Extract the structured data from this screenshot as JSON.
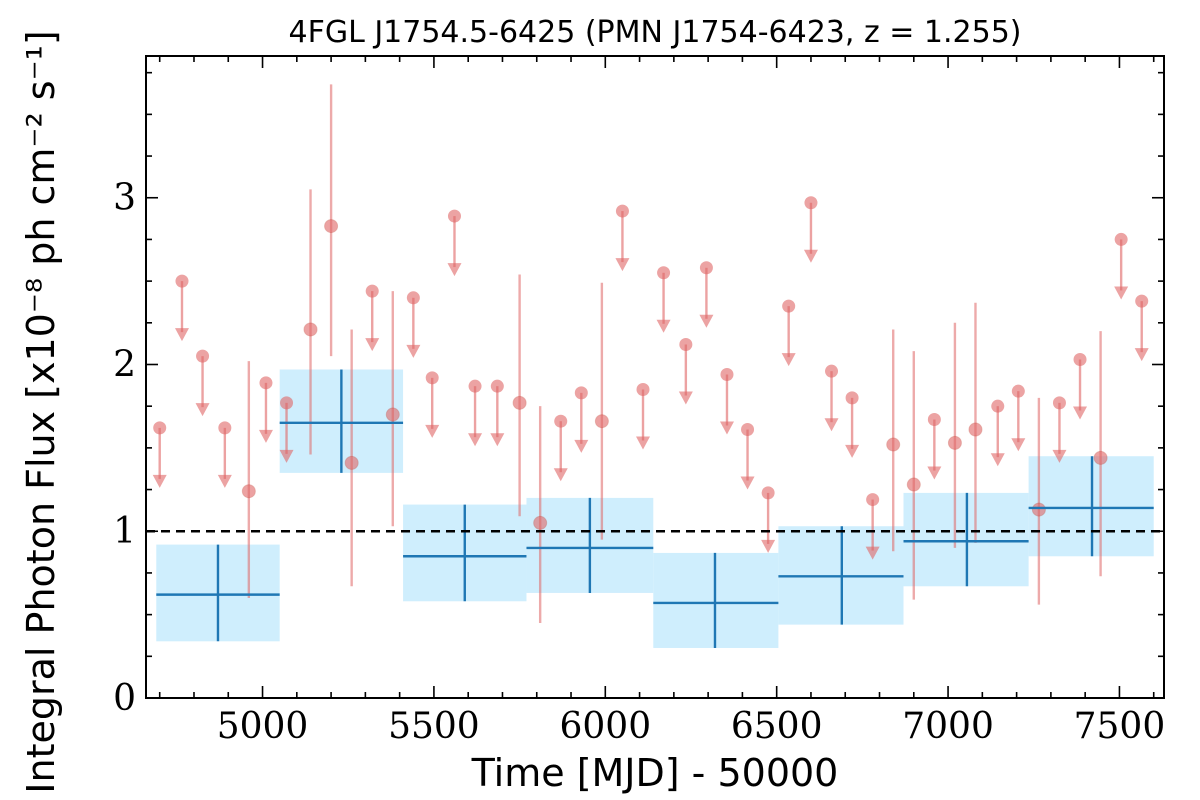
{
  "chart_data": {
    "type": "scatter",
    "title": "4FGL J1754.5-6425 (PMN J1754-6423, z = 1.255)",
    "xlabel": "Time [MJD] - 50000",
    "ylabel": "Integral Photon Flux [x10⁻⁸ ph cm⁻² s⁻¹]",
    "xlim": [
      4660,
      7630
    ],
    "ylim": [
      0,
      3.85
    ],
    "xticks": [
      5000,
      5500,
      6000,
      6500,
      7000,
      7500
    ],
    "xtick_labels": [
      "5000",
      "5500",
      "6000",
      "6500",
      "7000",
      "7500"
    ],
    "yticks": [
      0,
      1,
      2,
      3
    ],
    "ytick_labels": [
      "0",
      "1",
      "2",
      "3"
    ],
    "reference_line": {
      "y": 1.0,
      "style": "dashed",
      "color": "#000000"
    },
    "colors": {
      "short_bins": "#e06666",
      "long_bins_line": "#1f77b4",
      "long_bins_box": "#cfeefd"
    },
    "series": [
      {
        "kind": "short_bin_detections",
        "points": [
          {
            "x": 4960,
            "y": 1.24,
            "lo": 0.6,
            "hi": 2.02
          },
          {
            "x": 5140,
            "y": 2.21,
            "lo": 1.46,
            "hi": 3.05
          },
          {
            "x": 5200,
            "y": 2.83,
            "lo": 2.05,
            "hi": 3.68
          },
          {
            "x": 5260,
            "y": 1.41,
            "lo": 0.67,
            "hi": 2.21
          },
          {
            "x": 5380,
            "y": 1.7,
            "lo": 1.03,
            "hi": 2.44
          },
          {
            "x": 5750,
            "y": 1.77,
            "lo": 1.09,
            "hi": 2.54
          },
          {
            "x": 5810,
            "y": 1.05,
            "lo": 0.45,
            "hi": 1.75
          },
          {
            "x": 5990,
            "y": 1.66,
            "lo": 0.95,
            "hi": 2.49
          },
          {
            "x": 6840,
            "y": 1.52,
            "lo": 0.88,
            "hi": 2.21
          },
          {
            "x": 6900,
            "y": 1.28,
            "lo": 0.59,
            "hi": 2.08
          },
          {
            "x": 7020,
            "y": 1.53,
            "lo": 0.9,
            "hi": 2.25
          },
          {
            "x": 7080,
            "y": 1.61,
            "lo": 0.93,
            "hi": 2.37
          },
          {
            "x": 7265,
            "y": 1.13,
            "lo": 0.56,
            "hi": 1.8
          },
          {
            "x": 7445,
            "y": 1.44,
            "lo": 0.73,
            "hi": 2.2
          }
        ]
      },
      {
        "kind": "short_bin_upper_limits",
        "points": [
          {
            "x": 4700,
            "y": 1.62
          },
          {
            "x": 4765,
            "y": 2.5
          },
          {
            "x": 4825,
            "y": 2.05
          },
          {
            "x": 4890,
            "y": 1.62
          },
          {
            "x": 5010,
            "y": 1.89
          },
          {
            "x": 5070,
            "y": 1.77
          },
          {
            "x": 5320,
            "y": 2.44
          },
          {
            "x": 5440,
            "y": 2.4
          },
          {
            "x": 5495,
            "y": 1.92
          },
          {
            "x": 5560,
            "y": 2.89
          },
          {
            "x": 5620,
            "y": 1.87
          },
          {
            "x": 5685,
            "y": 1.87
          },
          {
            "x": 5870,
            "y": 1.66
          },
          {
            "x": 5930,
            "y": 1.83
          },
          {
            "x": 6050,
            "y": 2.92
          },
          {
            "x": 6110,
            "y": 1.85
          },
          {
            "x": 6170,
            "y": 2.55
          },
          {
            "x": 6235,
            "y": 2.12
          },
          {
            "x": 6295,
            "y": 2.58
          },
          {
            "x": 6355,
            "y": 1.94
          },
          {
            "x": 6415,
            "y": 1.61
          },
          {
            "x": 6475,
            "y": 1.23
          },
          {
            "x": 6535,
            "y": 2.35
          },
          {
            "x": 6600,
            "y": 2.97
          },
          {
            "x": 6660,
            "y": 1.96
          },
          {
            "x": 6720,
            "y": 1.8
          },
          {
            "x": 6780,
            "y": 1.19
          },
          {
            "x": 6960,
            "y": 1.67
          },
          {
            "x": 7145,
            "y": 1.75
          },
          {
            "x": 7205,
            "y": 1.84
          },
          {
            "x": 7325,
            "y": 1.77
          },
          {
            "x": 7385,
            "y": 2.03
          },
          {
            "x": 7505,
            "y": 2.75
          },
          {
            "x": 7565,
            "y": 2.38
          }
        ]
      },
      {
        "kind": "long_bins",
        "bins": [
          {
            "x0": 4690,
            "x1": 5050,
            "xc": 4870,
            "y": 0.62,
            "lo": 0.34,
            "hi": 0.92
          },
          {
            "x0": 5050,
            "x1": 5410,
            "xc": 5230,
            "y": 1.65,
            "lo": 1.35,
            "hi": 1.97
          },
          {
            "x0": 5410,
            "x1": 5770,
            "xc": 5590,
            "y": 0.85,
            "lo": 0.58,
            "hi": 1.16
          },
          {
            "x0": 5770,
            "x1": 6140,
            "xc": 5955,
            "y": 0.9,
            "lo": 0.63,
            "hi": 1.2
          },
          {
            "x0": 6140,
            "x1": 6505,
            "xc": 6320,
            "y": 0.57,
            "lo": 0.3,
            "hi": 0.87
          },
          {
            "x0": 6505,
            "x1": 6870,
            "xc": 6690,
            "y": 0.73,
            "lo": 0.44,
            "hi": 1.03
          },
          {
            "x0": 6870,
            "x1": 7235,
            "xc": 7055,
            "y": 0.94,
            "lo": 0.67,
            "hi": 1.23
          },
          {
            "x0": 7235,
            "x1": 7600,
            "xc": 7420,
            "y": 1.14,
            "lo": 0.85,
            "hi": 1.45
          }
        ]
      }
    ]
  }
}
